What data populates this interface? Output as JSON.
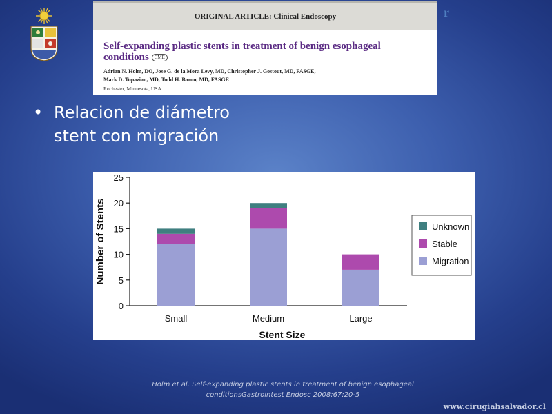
{
  "header": {
    "fragment": "r"
  },
  "article": {
    "section": "ORIGINAL ARTICLE: Clinical Endoscopy",
    "title_line1": "Self-expanding plastic stents in treatment of benign esophageal",
    "title_line2": "conditions",
    "badge": "CME",
    "authors_line1": "Adrian N. Holm, DO, Jose G. de la Mora Levy, MD, Christopher J. Gostout, MD, FASGE,",
    "authors_line2": "Mark D. Topazian, MD, Todd H. Baron, MD, FASGE",
    "affiliation": "Rochester, Minnesota, USA"
  },
  "bullet": {
    "line1": "Relacion de diámetro",
    "line2": "stent con migración"
  },
  "chart_data": {
    "type": "bar",
    "stacked": true,
    "categories": [
      "Small",
      "Medium",
      "Large"
    ],
    "series": [
      {
        "name": "Migration",
        "values": [
          12,
          15,
          7
        ]
      },
      {
        "name": "Stable",
        "values": [
          2,
          4,
          3
        ]
      },
      {
        "name": "Unknown",
        "values": [
          1,
          1,
          0
        ]
      }
    ],
    "title": "",
    "xlabel": "Stent Size",
    "ylabel": "Number of Stents",
    "ylim": [
      0,
      25
    ],
    "yticks": [
      0,
      5,
      10,
      15,
      20,
      25
    ],
    "grid": false,
    "legend_position": "right",
    "legend_order": [
      "Unknown",
      "Stable",
      "Migration"
    ],
    "colors": {
      "Migration": "#9b9fd4",
      "Stable": "#ad4aad",
      "Unknown": "#3f7f80"
    }
  },
  "citation": {
    "line1": "Holm et al. Self-expanding plastic stents in treatment of benign esophageal",
    "line2": "conditionsGastrointest Endosc 2008;67:20-5"
  },
  "footer": {
    "website": "www.cirugiahsalvador.cl"
  }
}
